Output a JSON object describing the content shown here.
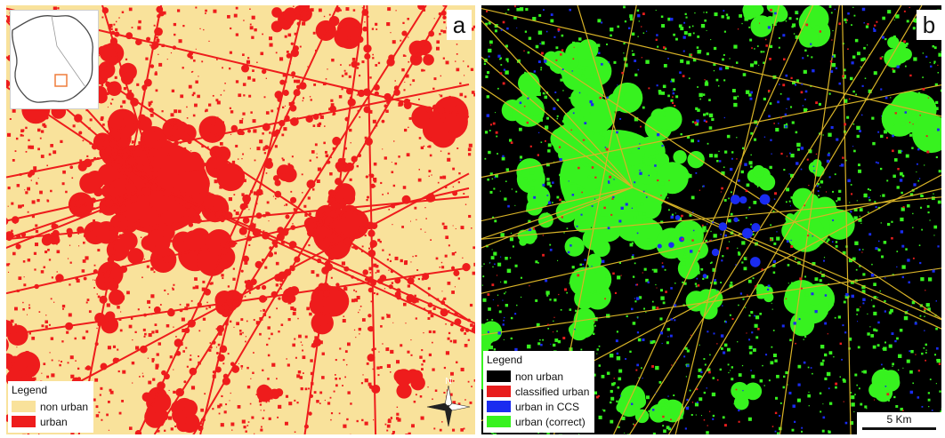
{
  "panels": [
    {
      "letter": "a",
      "colors": {
        "background": "#f9e29b",
        "urban": "#ee1c1c"
      },
      "legend": {
        "title": "Legend",
        "items": [
          {
            "label": "non urban",
            "color": "#f9e29b"
          },
          {
            "label": "urban",
            "color": "#ee1c1c"
          }
        ]
      },
      "north_arrow": {
        "label": "N"
      }
    },
    {
      "letter": "b",
      "colors": {
        "background": "#000000",
        "correct": "#37f21f",
        "classified": "#e81d1d",
        "ccs": "#1a2cf0",
        "roads": "#d8b327"
      },
      "legend": {
        "title": "Legend",
        "items": [
          {
            "label": "non urban",
            "color": "#000000"
          },
          {
            "label": "classified urban",
            "color": "#e81d1d"
          },
          {
            "label": "urban in CCS",
            "color": "#1a2cf0"
          },
          {
            "label": "urban (correct)",
            "color": "#37f21f"
          }
        ]
      },
      "scale_bar": {
        "label": "5 Km"
      }
    }
  ]
}
